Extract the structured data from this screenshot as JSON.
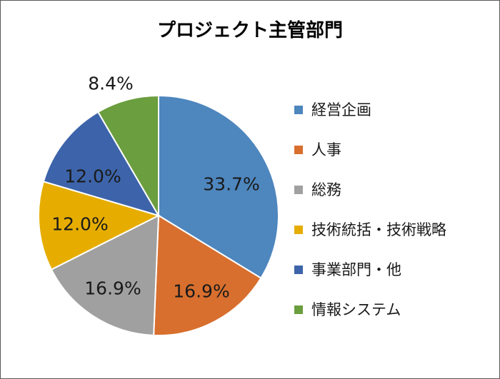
{
  "chart_data": {
    "type": "pie",
    "title": "プロジェクト主管部門",
    "legend_position": "right",
    "slices": [
      {
        "label": "経営企画",
        "value": 33.7,
        "display": "33.7%",
        "color": "#4E86BE"
      },
      {
        "label": "人事",
        "value": 16.9,
        "display": "16.9%",
        "color": "#D86F2E"
      },
      {
        "label": "総務",
        "value": 16.9,
        "display": "16.9%",
        "color": "#A0A0A0"
      },
      {
        "label": "技術統括・技術戦略",
        "value": 12.0,
        "display": "12.0%",
        "color": "#E6AD00"
      },
      {
        "label": "事業部門・他",
        "value": 12.0,
        "display": "12.0%",
        "color": "#3D64AA"
      },
      {
        "label": "情報システム",
        "value": 8.4,
        "display": "8.4%",
        "color": "#6B9E3E"
      }
    ]
  }
}
